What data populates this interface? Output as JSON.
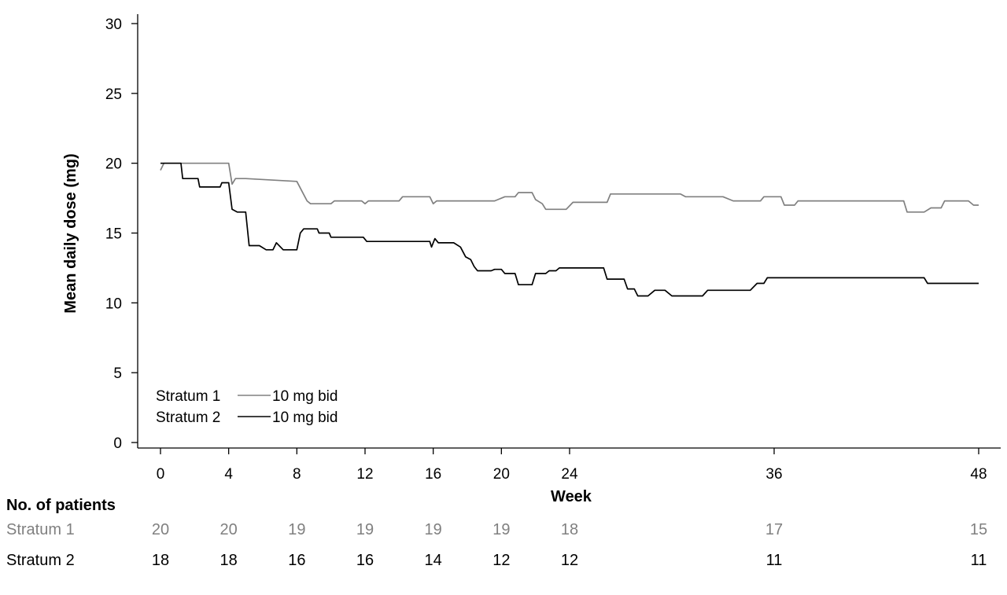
{
  "chart_data": {
    "type": "line",
    "title": "",
    "xlabel": "Week",
    "ylabel": "Mean daily dose (mg)",
    "xlim": [
      0,
      48
    ],
    "ylim": [
      0,
      30
    ],
    "x_ticks": [
      0,
      4,
      8,
      12,
      16,
      20,
      24,
      36,
      48
    ],
    "y_ticks": [
      0,
      5,
      10,
      15,
      20,
      25,
      30
    ],
    "grid": false,
    "legend": {
      "placement": "bottom-left",
      "entries": [
        {
          "name": "Stratum 1",
          "label": "10 mg bid",
          "color": "#808080"
        },
        {
          "name": "Stratum 2",
          "label": "10 mg bid",
          "color": "#000000"
        }
      ]
    },
    "series": [
      {
        "name": "Stratum 1",
        "color": "#808080",
        "step": true,
        "points": [
          [
            0,
            19.5
          ],
          [
            0.2,
            20.0
          ],
          [
            4.0,
            20.0
          ],
          [
            4.2,
            18.5
          ],
          [
            4.4,
            18.9
          ],
          [
            5.0,
            18.9
          ],
          [
            8.0,
            18.7
          ],
          [
            8.6,
            17.3
          ],
          [
            8.8,
            17.1
          ],
          [
            10.0,
            17.1
          ],
          [
            10.2,
            17.3
          ],
          [
            11.8,
            17.3
          ],
          [
            12.0,
            17.1
          ],
          [
            12.2,
            17.3
          ],
          [
            14.0,
            17.3
          ],
          [
            14.2,
            17.6
          ],
          [
            15.8,
            17.6
          ],
          [
            16.0,
            17.1
          ],
          [
            16.2,
            17.3
          ],
          [
            19.6,
            17.3
          ],
          [
            20.2,
            17.6
          ],
          [
            20.8,
            17.6
          ],
          [
            21.0,
            17.9
          ],
          [
            21.8,
            17.9
          ],
          [
            22.0,
            17.4
          ],
          [
            22.4,
            17.1
          ],
          [
            22.6,
            16.7
          ],
          [
            23.8,
            16.7
          ],
          [
            24.2,
            17.2
          ],
          [
            26.2,
            17.2
          ],
          [
            26.4,
            17.8
          ],
          [
            30.5,
            17.8
          ],
          [
            30.8,
            17.6
          ],
          [
            33.0,
            17.6
          ],
          [
            33.6,
            17.3
          ],
          [
            35.2,
            17.3
          ],
          [
            35.4,
            17.6
          ],
          [
            36.4,
            17.6
          ],
          [
            36.6,
            17.0
          ],
          [
            37.2,
            17.0
          ],
          [
            37.4,
            17.3
          ],
          [
            43.6,
            17.3
          ],
          [
            43.8,
            16.5
          ],
          [
            44.8,
            16.5
          ],
          [
            45.2,
            16.8
          ],
          [
            45.8,
            16.8
          ],
          [
            46.0,
            17.3
          ],
          [
            47.4,
            17.3
          ],
          [
            47.7,
            17.0
          ],
          [
            48.0,
            17.0
          ]
        ]
      },
      {
        "name": "Stratum 2",
        "color": "#000000",
        "step": true,
        "points": [
          [
            0,
            20.0
          ],
          [
            1.2,
            20.0
          ],
          [
            1.3,
            18.9
          ],
          [
            2.2,
            18.9
          ],
          [
            2.3,
            18.3
          ],
          [
            3.5,
            18.3
          ],
          [
            3.6,
            18.6
          ],
          [
            4.0,
            18.6
          ],
          [
            4.2,
            16.7
          ],
          [
            4.5,
            16.5
          ],
          [
            5.0,
            16.5
          ],
          [
            5.2,
            14.1
          ],
          [
            5.8,
            14.1
          ],
          [
            6.2,
            13.8
          ],
          [
            6.6,
            13.8
          ],
          [
            6.8,
            14.3
          ],
          [
            7.2,
            13.8
          ],
          [
            8.0,
            13.8
          ],
          [
            8.2,
            15.0
          ],
          [
            8.4,
            15.3
          ],
          [
            8.6,
            15.3
          ],
          [
            9.2,
            15.3
          ],
          [
            9.3,
            15.0
          ],
          [
            9.9,
            15.0
          ],
          [
            10.0,
            14.7
          ],
          [
            11.9,
            14.7
          ],
          [
            12.1,
            14.4
          ],
          [
            15.8,
            14.4
          ],
          [
            15.9,
            14.0
          ],
          [
            16.1,
            14.6
          ],
          [
            16.3,
            14.3
          ],
          [
            17.2,
            14.3
          ],
          [
            17.6,
            14.0
          ],
          [
            17.9,
            13.3
          ],
          [
            18.2,
            13.1
          ],
          [
            18.4,
            12.6
          ],
          [
            18.6,
            12.3
          ],
          [
            19.4,
            12.3
          ],
          [
            19.6,
            12.4
          ],
          [
            20.0,
            12.4
          ],
          [
            20.2,
            12.1
          ],
          [
            20.8,
            12.1
          ],
          [
            21.0,
            11.3
          ],
          [
            21.8,
            11.3
          ],
          [
            22.0,
            12.1
          ],
          [
            22.6,
            12.1
          ],
          [
            22.8,
            12.3
          ],
          [
            23.2,
            12.3
          ],
          [
            23.4,
            12.5
          ],
          [
            26.0,
            12.5
          ],
          [
            26.2,
            11.7
          ],
          [
            27.2,
            11.7
          ],
          [
            27.4,
            11.0
          ],
          [
            27.8,
            11.0
          ],
          [
            28.0,
            10.5
          ],
          [
            28.6,
            10.5
          ],
          [
            29.0,
            10.9
          ],
          [
            29.6,
            10.9
          ],
          [
            30.0,
            10.5
          ],
          [
            31.8,
            10.5
          ],
          [
            32.1,
            10.9
          ],
          [
            34.6,
            10.9
          ],
          [
            35.0,
            11.4
          ],
          [
            35.4,
            11.4
          ],
          [
            35.6,
            11.8
          ],
          [
            44.8,
            11.8
          ],
          [
            45.0,
            11.4
          ],
          [
            48.0,
            11.4
          ]
        ]
      }
    ],
    "risk_table": {
      "header": "No. of patients",
      "weeks": [
        0,
        4,
        8,
        12,
        16,
        20,
        24,
        36,
        48
      ],
      "rows": [
        {
          "name": "Stratum 1",
          "color": "#808080",
          "values": [
            "20",
            "20",
            "19",
            "19",
            "19",
            "19",
            "18",
            "17",
            "15"
          ]
        },
        {
          "name": "Stratum 2",
          "color": "#000000",
          "values": [
            "18",
            "18",
            "16",
            "16",
            "14",
            "12",
            "12",
            "11",
            "11"
          ]
        }
      ]
    }
  }
}
